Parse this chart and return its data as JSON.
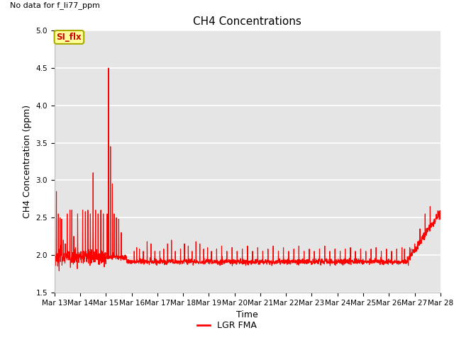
{
  "title": "CH4 Concentrations",
  "xlabel": "Time",
  "ylabel": "CH4 Concentration (ppm)",
  "ylim": [
    1.5,
    5.0
  ],
  "yticks": [
    1.5,
    2.0,
    2.5,
    3.0,
    3.5,
    4.0,
    4.5,
    5.0
  ],
  "xtick_labels": [
    "Mar 13",
    "Mar 14",
    "Mar 15",
    "Mar 16",
    "Mar 17",
    "Mar 18",
    "Mar 19",
    "Mar 20",
    "Mar 21",
    "Mar 22",
    "Mar 23",
    "Mar 24",
    "Mar 25",
    "Mar 26",
    "Mar 27",
    "Mar 28"
  ],
  "line_color": "#ff0000",
  "line_width": 0.8,
  "background_color": "#ffffff",
  "plot_bg_color": "#e5e5e5",
  "grid_color": "#ffffff",
  "annotation_text": "No data for f_li77_ppm",
  "legend_label": "LGR FMA",
  "legend_line_color": "#ff0000",
  "si_flx_label": "SI_flx",
  "si_flx_bg": "#ffff99",
  "si_flx_border": "#aaaa00",
  "title_fontsize": 11,
  "axis_label_fontsize": 9,
  "tick_fontsize": 7.5,
  "annot_fontsize": 8,
  "num_points": 2000
}
